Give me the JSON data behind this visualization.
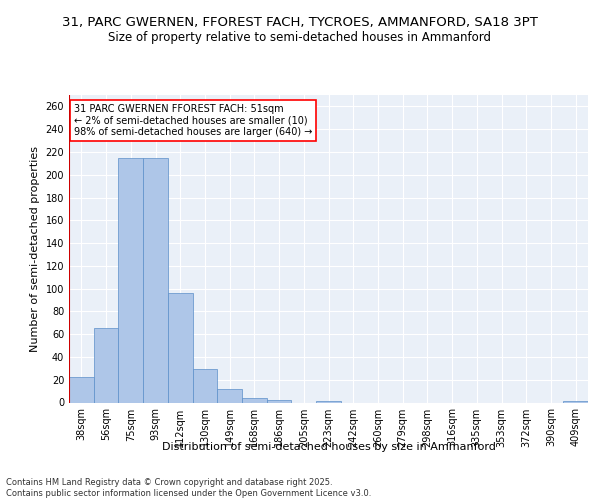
{
  "title_line1": "31, PARC GWERNEN, FFOREST FACH, TYCROES, AMMANFORD, SA18 3PT",
  "title_line2": "Size of property relative to semi-detached houses in Ammanford",
  "xlabel": "Distribution of semi-detached houses by size in Ammanford",
  "ylabel": "Number of semi-detached properties",
  "categories": [
    "38sqm",
    "56sqm",
    "75sqm",
    "93sqm",
    "112sqm",
    "130sqm",
    "149sqm",
    "168sqm",
    "186sqm",
    "205sqm",
    "223sqm",
    "242sqm",
    "260sqm",
    "279sqm",
    "298sqm",
    "316sqm",
    "335sqm",
    "353sqm",
    "372sqm",
    "390sqm",
    "409sqm"
  ],
  "values": [
    22,
    65,
    215,
    215,
    96,
    29,
    12,
    4,
    2,
    0,
    1,
    0,
    0,
    0,
    0,
    0,
    0,
    0,
    0,
    0,
    1
  ],
  "bar_color": "#aec6e8",
  "bar_edge_color": "#5b8fc9",
  "highlight_color": "#cc0000",
  "background_color": "#eaf0f8",
  "grid_color": "#ffffff",
  "annotation_text": "31 PARC GWERNEN FFOREST FACH: 51sqm\n← 2% of semi-detached houses are smaller (10)\n98% of semi-detached houses are larger (640) →",
  "ylim": [
    0,
    270
  ],
  "yticks": [
    0,
    20,
    40,
    60,
    80,
    100,
    120,
    140,
    160,
    180,
    200,
    220,
    240,
    260
  ],
  "footer_text": "Contains HM Land Registry data © Crown copyright and database right 2025.\nContains public sector information licensed under the Open Government Licence v3.0.",
  "title_fontsize": 9.5,
  "subtitle_fontsize": 8.5,
  "axis_label_fontsize": 8,
  "tick_fontsize": 7,
  "footer_fontsize": 6,
  "annotation_fontsize": 7
}
